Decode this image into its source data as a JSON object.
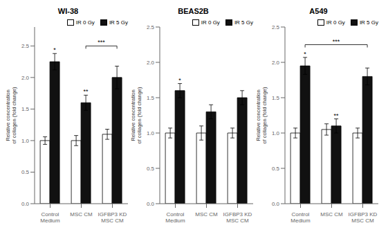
{
  "chart_data": [
    {
      "type": "bar",
      "title": "WI-38",
      "categories": [
        "Control\nMedium",
        "MSC CM",
        "IGFBP3 KD\nMSC CM"
      ],
      "series": [
        {
          "name": "IR 0 Gy",
          "color": "white",
          "values": [
            1.0,
            1.0,
            1.1
          ],
          "errors": [
            0.06,
            0.08,
            0.08
          ]
        },
        {
          "name": "IR 5 Gy",
          "color": "#111111",
          "values": [
            2.25,
            1.6,
            2.0
          ],
          "errors": [
            0.13,
            0.12,
            0.18
          ]
        }
      ],
      "ylabel": "Relative concentration\nof collagen (fold change)",
      "ylim": [
        0,
        2.8
      ],
      "yticks": [
        {
          "value": 0,
          "label": "0.0"
        },
        0.5,
        {
          "value": 1.0,
          "label": "1.0"
        },
        1.5,
        {
          "value": 2.0,
          "label": "2.0"
        },
        2.5
      ],
      "legend": "upper right",
      "annotations": [
        {
          "category": "Control\nMedium",
          "series": "IR 5 Gy",
          "text": "*"
        },
        {
          "category": "MSC CM",
          "series": "IR 5 Gy",
          "text": "**"
        },
        {
          "from": "MSC CM",
          "to": "IGFBP3 KD\nMSC CM",
          "series": "IR 5 Gy",
          "y": 2.5,
          "text": "***"
        }
      ]
    },
    {
      "type": "bar",
      "title": "BEAS2B",
      "categories": [
        "Control\nMedium",
        "MSC CM",
        "IGFBP3 KD\nMSC CM"
      ],
      "series": [
        {
          "name": "IR 0 Gy",
          "color": "white",
          "values": [
            1.0,
            1.0,
            1.0
          ],
          "errors": [
            0.07,
            0.1,
            0.07
          ]
        },
        {
          "name": "IR 5 Gy",
          "color": "#111111",
          "values": [
            1.6,
            1.3,
            1.5
          ],
          "errors": [
            0.1,
            0.1,
            0.1
          ]
        }
      ],
      "ylabel": "Relative concentration\nof collagen (fold change)",
      "ylim": [
        0,
        2.5
      ],
      "yticks": [
        {
          "value": 0,
          "label": "0.0"
        },
        0.5,
        {
          "value": 1.0,
          "label": "1.0"
        },
        1.5,
        {
          "value": 2.0,
          "label": "2.0"
        },
        2.5
      ],
      "legend": "upper right",
      "annotations": [
        {
          "category": "Control\nMedium",
          "series": "IR 5 Gy",
          "text": "*"
        }
      ]
    },
    {
      "type": "bar",
      "title": "A549",
      "categories": [
        "Control\nMedium",
        "MSC CM",
        "IGFBP3 KD\nMSC CM"
      ],
      "series": [
        {
          "name": "IR 0 Gy",
          "color": "white",
          "values": [
            1.0,
            1.05,
            1.0
          ],
          "errors": [
            0.07,
            0.08,
            0.07
          ]
        },
        {
          "name": "IR 5 Gy",
          "color": "#111111",
          "values": [
            1.95,
            1.1,
            1.8
          ],
          "errors": [
            0.12,
            0.1,
            0.12
          ]
        }
      ],
      "ylabel": "Relative concentration\nof collagen (fold change)",
      "ylim": [
        0,
        2.5
      ],
      "yticks": [
        {
          "value": 0,
          "label": "0.0"
        },
        0.5,
        {
          "value": 1.0,
          "label": "1.0"
        },
        1.5,
        {
          "value": 2.0,
          "label": "2.0"
        },
        2.5
      ],
      "legend": "upper right",
      "annotations": [
        {
          "category": "Control\nMedium",
          "series": "IR 5 Gy",
          "text": "*"
        },
        {
          "category": "MSC CM",
          "series": "IR 5 Gy",
          "text": "**"
        },
        {
          "from": "Control\nMedium",
          "to": "IGFBP3 KD\nMSC CM",
          "series": "IR 5 Gy",
          "y": 2.25,
          "text": "***"
        }
      ]
    }
  ]
}
